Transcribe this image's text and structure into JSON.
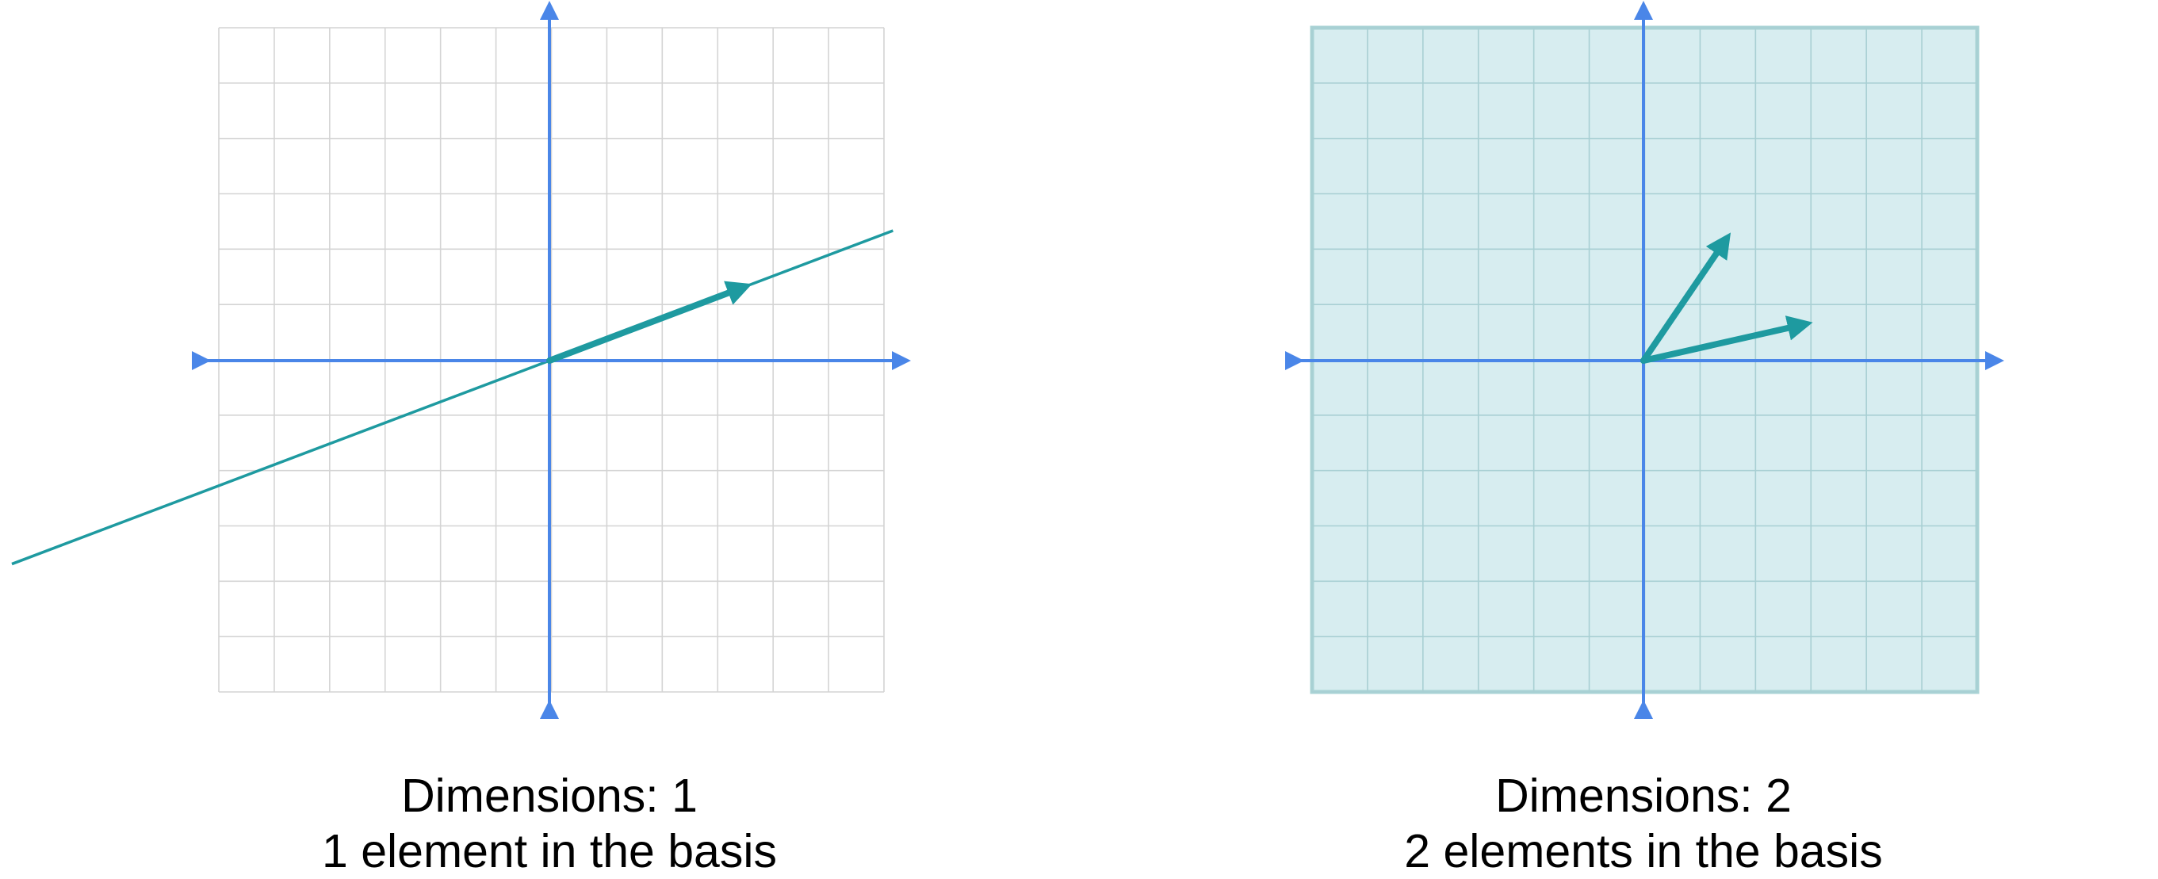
{
  "colors": {
    "background": "#ffffff",
    "grid_line": "#d4d4d4",
    "axis": "#4a86e8",
    "vector": "#1e9aa0",
    "span_fill": "#d7edf0",
    "span_border": "#a9d3d5",
    "caption_text": "#000000"
  },
  "diagrams": [
    {
      "id": "one-dimensional",
      "span": "line",
      "basis_vectors": [
        {
          "x": 3.7,
          "y": 1.4
        }
      ],
      "caption": {
        "dimensions_line": "Dimensions: 1",
        "basis_line": "1 element in the basis"
      }
    },
    {
      "id": "two-dimensional",
      "span": "plane",
      "basis_vectors": [
        {
          "x": 1.6,
          "y": 2.35
        },
        {
          "x": 3.1,
          "y": 0.7
        }
      ],
      "caption": {
        "dimensions_line": "Dimensions: 2",
        "basis_line": "2 elements in the basis"
      }
    }
  ]
}
